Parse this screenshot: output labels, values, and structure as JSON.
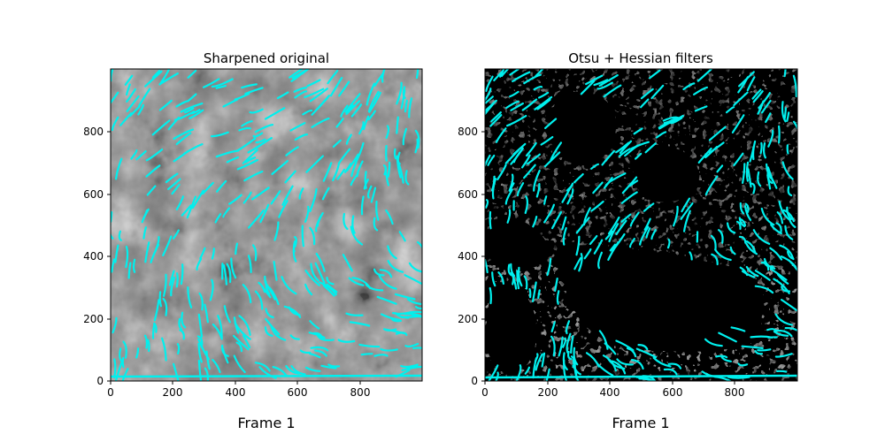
{
  "chart_data": [
    {
      "type": "image-overlay",
      "title": "Sharpened original",
      "xlabel": "Frame 1",
      "ylabel": "",
      "xlim": [
        0,
        1000
      ],
      "ylim": [
        0,
        1000
      ],
      "xticks": [
        "0",
        "200",
        "400",
        "600",
        "800"
      ],
      "yticks": [
        "0",
        "200",
        "400",
        "600",
        "800"
      ],
      "background": "grayscale solar image",
      "overlay_color": "#00f0ee",
      "grid": false
    },
    {
      "type": "image-overlay",
      "title": "Otsu + Hessian filters",
      "xlabel": "Frame 1",
      "ylabel": "",
      "xlim": [
        0,
        1000
      ],
      "ylim": [
        0,
        1000
      ],
      "xticks": [
        "0",
        "200",
        "400",
        "600",
        "800"
      ],
      "yticks": [
        "0",
        "200",
        "400",
        "600",
        "800"
      ],
      "background": "black binary mask",
      "overlay_color": "#00f0ee",
      "grid": false
    }
  ]
}
